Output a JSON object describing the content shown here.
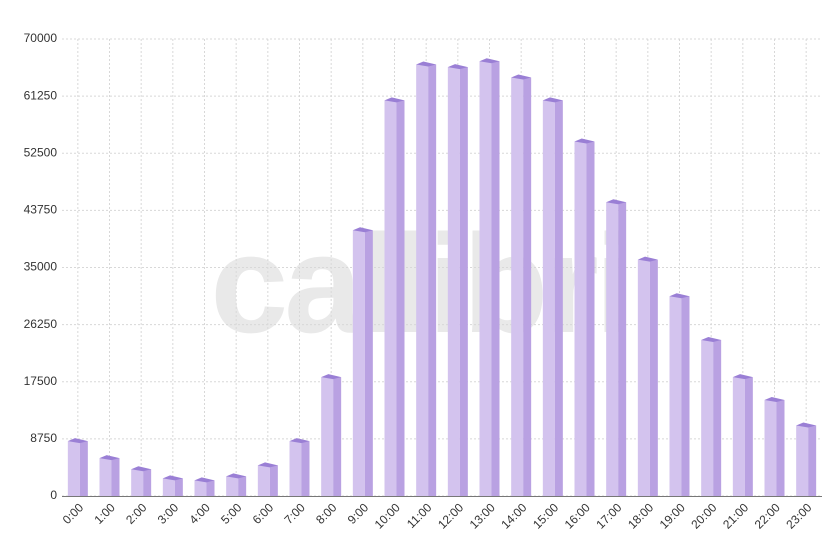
{
  "chart_data": {
    "type": "bar",
    "watermark": "callibri",
    "categories": [
      "0:00",
      "1:00",
      "2:00",
      "3:00",
      "4:00",
      "5:00",
      "6:00",
      "7:00",
      "8:00",
      "9:00",
      "10:00",
      "11:00",
      "12:00",
      "13:00",
      "14:00",
      "15:00",
      "16:00",
      "17:00",
      "18:00",
      "19:00",
      "20:00",
      "21:00",
      "22:00",
      "23:00"
    ],
    "values": [
      8400,
      5800,
      4100,
      2700,
      2400,
      3000,
      4700,
      8400,
      18200,
      40700,
      60600,
      66100,
      65700,
      66600,
      64100,
      60600,
      54300,
      45000,
      36200,
      30600,
      23900,
      18200,
      14700,
      10800
    ],
    "color": "#d3c3ee",
    "ylim": [
      0,
      70000
    ],
    "yticks": [
      0,
      8750,
      17500,
      26250,
      35000,
      43750,
      52500,
      61250,
      70000
    ],
    "grid": true
  }
}
